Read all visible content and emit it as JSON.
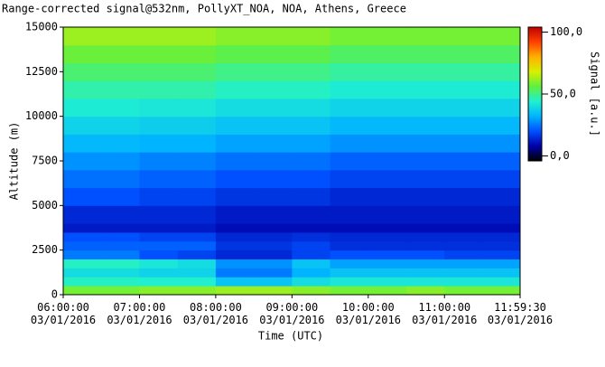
{
  "chart_data": {
    "type": "heatmap",
    "title": "Range-corrected signal@532nm, PollyXT_NOA, NOA, Athens, Greece",
    "x_label": "Time (UTC)",
    "y_label": "Altitude (m)",
    "colorbar_label": "Signal [a.u.]",
    "xlim": [
      360,
      719.5
    ],
    "xticks": [
      {
        "value": 360,
        "label": "06:00:00\n03/01/2016"
      },
      {
        "value": 420,
        "label": "07:00:00\n03/01/2016"
      },
      {
        "value": 480,
        "label": "08:00:00\n03/01/2016"
      },
      {
        "value": 540,
        "label": "09:00:00\n03/01/2016"
      },
      {
        "value": 600,
        "label": "10:00:00\n03/01/2016"
      },
      {
        "value": 660,
        "label": "11:00:00\n03/01/2016"
      },
      {
        "value": 719.5,
        "label": "11:59:30\n03/01/2016"
      }
    ],
    "ylim": [
      0,
      15000
    ],
    "yticks": [
      0,
      2500,
      5000,
      7500,
      10000,
      12500,
      15000
    ],
    "zlim": [
      -4,
      104
    ],
    "zticks": [
      {
        "value": 0,
        "label": "0,0"
      },
      {
        "value": 50,
        "label": "50,0"
      },
      {
        "value": 100,
        "label": "100,0"
      }
    ],
    "colormap": [
      "#000000",
      "#0000a8",
      "#0050ff",
      "#00b4ff",
      "#20f0d0",
      "#60f040",
      "#d8f000",
      "#ffb000",
      "#ff4000",
      "#c00000"
    ],
    "x_bins": [
      360,
      390,
      420,
      450,
      480,
      510,
      540,
      570,
      600,
      630,
      660,
      690,
      719.5
    ],
    "y_bins": [
      0,
      500,
      1000,
      1500,
      2000,
      2500,
      3000,
      3500,
      4000,
      5000,
      6000,
      7000,
      8000,
      9000,
      10000,
      11000,
      12000,
      13000,
      14000,
      15000
    ],
    "z": [
      [
        58,
        58,
        60,
        60,
        62,
        62,
        60,
        58,
        58,
        60,
        58,
        58
      ],
      [
        45,
        45,
        44,
        44,
        35,
        35,
        40,
        42,
        42,
        42,
        42,
        42
      ],
      [
        40,
        40,
        38,
        38,
        25,
        25,
        32,
        35,
        35,
        35,
        35,
        35
      ],
      [
        45,
        45,
        42,
        40,
        28,
        28,
        35,
        30,
        30,
        30,
        30,
        30
      ],
      [
        25,
        25,
        20,
        18,
        14,
        14,
        18,
        20,
        20,
        20,
        18,
        18
      ],
      [
        22,
        22,
        22,
        22,
        16,
        16,
        18,
        15,
        15,
        15,
        15,
        15
      ],
      [
        20,
        20,
        18,
        18,
        14,
        14,
        15,
        14,
        14,
        14,
        14,
        14
      ],
      [
        12,
        12,
        12,
        12,
        10,
        10,
        10,
        10,
        10,
        10,
        10,
        10
      ],
      [
        14,
        14,
        14,
        14,
        12,
        12,
        12,
        12,
        12,
        12,
        12,
        12
      ],
      [
        20,
        20,
        18,
        18,
        16,
        16,
        16,
        14,
        14,
        14,
        14,
        14
      ],
      [
        24,
        24,
        22,
        22,
        20,
        20,
        20,
        18,
        18,
        18,
        18,
        18
      ],
      [
        28,
        28,
        26,
        26,
        24,
        24,
        24,
        22,
        22,
        22,
        22,
        22
      ],
      [
        33,
        33,
        32,
        32,
        30,
        30,
        30,
        28,
        28,
        28,
        28,
        28
      ],
      [
        38,
        38,
        37,
        37,
        35,
        35,
        35,
        33,
        33,
        33,
        33,
        33
      ],
      [
        43,
        43,
        42,
        42,
        40,
        40,
        40,
        38,
        38,
        38,
        38,
        38
      ],
      [
        47,
        47,
        47,
        47,
        45,
        45,
        45,
        43,
        43,
        43,
        43,
        43
      ],
      [
        52,
        52,
        52,
        52,
        50,
        50,
        50,
        48,
        48,
        48,
        48,
        48
      ],
      [
        57,
        57,
        57,
        57,
        55,
        55,
        55,
        53,
        53,
        53,
        53,
        53
      ],
      [
        62,
        62,
        62,
        62,
        60,
        60,
        60,
        58,
        58,
        58,
        58,
        58
      ]
    ]
  }
}
